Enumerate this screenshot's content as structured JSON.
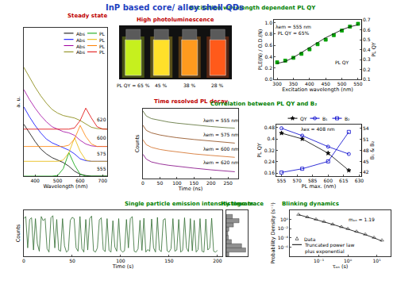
{
  "title": "InP based core/ alloy shell QDs",
  "photo": {
    "title": "High photoluminescence",
    "vials": [
      {
        "color": "#c6f01e",
        "label": "PL QY = 65 %"
      },
      {
        "color": "#ffe02a",
        "label": "45 %"
      },
      {
        "color": "#ff9a1e",
        "label": "38 %"
      },
      {
        "color": "#ff5a1a",
        "label": "28 %"
      }
    ]
  },
  "chart_data": [
    {
      "type": "line",
      "title": "Steady state",
      "xlabel": "Wavelength (nm)",
      "ylabel": "a. u.",
      "tick_labels": "x",
      "legend": "upper right",
      "x": [
        350,
        375,
        400,
        425,
        450,
        475,
        500,
        525,
        550,
        575,
        600,
        625,
        650,
        675,
        700,
        720
      ],
      "xlim": [
        350,
        720
      ],
      "xticks": [
        400,
        500,
        600,
        700
      ],
      "ylim": [
        0,
        12
      ],
      "series": [
        {
          "name": "Abs",
          "color": "#000000",
          "values": [
            4.2,
            3.5,
            2.8,
            2.2,
            1.8,
            1.5,
            1.3,
            1.1,
            0.8,
            0.4,
            0.15,
            0.05,
            0,
            0,
            0,
            0
          ]
        },
        {
          "name": "PL",
          "color": "#00a000",
          "values": [
            0,
            0,
            0,
            0,
            0,
            0,
            0.05,
            0.6,
            1.9,
            0.9,
            0.15,
            0,
            0,
            0,
            0,
            0
          ]
        },
        {
          "name": "Abs",
          "color": "#0000ff",
          "values": [
            5.6,
            4.8,
            4.1,
            3.5,
            3.0,
            2.7,
            2.5,
            2.3,
            2.1,
            1.8,
            1.4,
            1.25,
            1.2,
            1.2,
            1.2,
            1.2
          ]
        },
        {
          "name": "PL",
          "color": "#e6b800",
          "values": [
            1.2,
            1.2,
            1.2,
            1.2,
            1.2,
            1.2,
            1.2,
            1.3,
            1.9,
            3.1,
            2.0,
            1.3,
            1.2,
            1.2,
            1.2,
            1.2
          ]
        },
        {
          "name": "Abs",
          "color": "#a000a0",
          "values": [
            7.0,
            6.2,
            5.5,
            4.9,
            4.4,
            4.0,
            3.8,
            3.6,
            3.5,
            3.3,
            2.9,
            2.6,
            2.45,
            2.4,
            2.4,
            2.4
          ]
        },
        {
          "name": "PL",
          "color": "#ff8000",
          "values": [
            2.4,
            2.4,
            2.4,
            2.4,
            2.4,
            2.4,
            2.4,
            2.4,
            2.5,
            3.0,
            4.1,
            3.2,
            2.6,
            2.4,
            2.4,
            2.4
          ]
        },
        {
          "name": "Abs",
          "color": "#808000",
          "values": [
            8.8,
            8.0,
            7.2,
            6.5,
            5.9,
            5.4,
            5.1,
            4.9,
            4.8,
            4.7,
            4.5,
            4.2,
            3.95,
            3.85,
            3.8,
            3.8
          ]
        },
        {
          "name": "PL",
          "color": "#e00000",
          "values": [
            3.8,
            3.8,
            3.8,
            3.8,
            3.8,
            3.8,
            3.8,
            3.8,
            3.8,
            3.9,
            4.5,
            5.5,
            4.7,
            4.0,
            3.8,
            3.8
          ]
        }
      ],
      "annotations": [
        {
          "text": "620",
          "x": 695,
          "y": 4.6
        },
        {
          "text": "600",
          "x": 695,
          "y": 3.1
        },
        {
          "text": "575",
          "x": 695,
          "y": 1.8
        },
        {
          "text": "555",
          "x": 695,
          "y": 0.6
        }
      ]
    },
    {
      "type": "line",
      "title": "Excitation wavelength dependent PL QY",
      "xlabel": "Excitation wavelength (nm)",
      "ylabel": "PLE(N) / O.D.(N)",
      "y2label": "PL QY",
      "x": [
        300,
        325,
        350,
        375,
        400,
        425,
        450,
        475,
        500,
        525,
        550
      ],
      "xlim": [
        290,
        560
      ],
      "xticks": [
        300,
        350,
        400,
        450,
        500,
        550
      ],
      "ylim": [
        0,
        1.05
      ],
      "yticks": [
        {
          "value": 0,
          "label": "0.0"
        },
        0.2,
        0.4,
        0.6,
        0.8,
        {
          "value": 1,
          "label": "1.0"
        }
      ],
      "y2lim": [
        0.1,
        0.7
      ],
      "y2ticks": [
        0.1,
        0.2,
        0.3,
        0.4,
        0.5,
        0.6,
        0.7
      ],
      "series": [
        {
          "color": "#00a000",
          "marker": "square",
          "line_style": "none",
          "values": [
            0.3,
            0.33,
            0.38,
            0.45,
            0.53,
            0.62,
            0.7,
            0.78,
            0.86,
            0.93,
            0.98
          ]
        },
        {
          "color": "#000000",
          "line_style": "solid",
          "axis": "y2",
          "values": [
            0.26,
            0.28,
            0.32,
            0.37,
            0.42,
            0.47,
            0.52,
            0.56,
            0.6,
            0.63,
            0.65
          ]
        }
      ],
      "annotations": [
        {
          "text": "λem = 555 nm\nPL QY = 65%",
          "x": 350,
          "y": 0.88
        },
        {
          "text": "PL QY",
          "x": 500,
          "y": 0.3
        }
      ]
    },
    {
      "type": "line",
      "title": "Time resolved PL decay",
      "xlabel": "Time (ns)",
      "ylabel": "Counts",
      "log": "y",
      "tick_labels": "x",
      "x": [
        0,
        10,
        25,
        50,
        75,
        100,
        150,
        200,
        250,
        270
      ],
      "xlim": [
        0,
        280
      ],
      "xticks": [
        0,
        50,
        100,
        150,
        200,
        250
      ],
      "ylim": [
        0.1,
        30000
      ],
      "series": [
        {
          "color": "#556b2f",
          "values": [
            20000,
            8000,
            5000,
            3500,
            2700,
            2200,
            1600,
            1200,
            950,
            900
          ]
        },
        {
          "color": "#8b4513",
          "values": [
            1500,
            600,
            380,
            260,
            200,
            160,
            115,
            85,
            65,
            60
          ]
        },
        {
          "color": "#d2691e",
          "values": [
            110,
            45,
            28,
            19,
            15,
            12,
            8.5,
            6.5,
            5,
            4.6
          ]
        },
        {
          "color": "#800080",
          "values": [
            8,
            3.3,
            2,
            1.4,
            1.1,
            0.9,
            0.65,
            0.48,
            0.37,
            0.34
          ]
        }
      ],
      "annotations": [
        {
          "text": "λem = 555 nm",
          "x": 230,
          "y": 4000
        },
        {
          "text": "λem = 575 nm",
          "x": 230,
          "y": 282
        },
        {
          "text": "λem = 600 nm",
          "x": 230,
          "y": 22
        },
        {
          "text": "λem = 620 nm",
          "x": 230,
          "y": 2
        }
      ]
    },
    {
      "type": "scatter",
      "title": "Correlation between PL QY and B₂",
      "xlabel": "PL max. (nm)",
      "ylabel": "PL QY",
      "y2label": "B₁ & B₂",
      "legend": "top",
      "x": [
        555,
        575,
        600,
        620
      ],
      "xlim": [
        550,
        632
      ],
      "xticks": [
        555,
        570,
        585,
        600,
        615,
        630
      ],
      "ylim": [
        0.14,
        0.5
      ],
      "yticks": [
        0.16,
        0.24,
        0.32,
        0.4,
        0.48
      ],
      "y2lim": [
        41,
        55
      ],
      "y2ticks": [
        42,
        45,
        48,
        51,
        54
      ],
      "series": [
        {
          "name": "QY",
          "color": "#000000",
          "marker": "star",
          "line_style": "solid",
          "values": [
            0.44,
            0.4,
            0.3,
            0.18
          ]
        },
        {
          "name": "B₁",
          "color": "#0000cc",
          "marker": "circle-open",
          "line_style": "solid",
          "axis": "y2",
          "values": [
            54,
            52,
            49,
            47
          ]
        },
        {
          "name": "B₂",
          "color": "#0000cc",
          "marker": "square-open",
          "line_style": "solid",
          "axis": "y2",
          "values": [
            42,
            43,
            45,
            53
          ]
        }
      ],
      "annotations": [
        {
          "text": "λex = 408 nm",
          "x": 590,
          "y": 0.47
        }
      ]
    },
    {
      "type": "line",
      "title": "Single particle emission intensity time trace",
      "xlabel": "Time (s)",
      "ylabel": "Counts",
      "tick_labels": "x",
      "color": "#2e6b2e",
      "x": [
        0,
        2,
        4,
        6,
        8,
        10,
        12,
        14,
        16,
        18,
        20,
        22,
        24,
        26,
        28,
        30,
        32,
        34,
        36,
        38,
        40,
        42,
        44,
        46,
        48,
        50,
        52,
        54,
        56,
        58,
        60,
        62,
        64,
        66,
        68,
        70,
        72,
        74,
        76,
        78,
        80,
        82,
        84,
        86,
        88,
        90,
        92,
        94,
        96,
        98,
        100,
        102,
        104,
        106,
        108,
        110,
        112,
        114,
        116,
        118,
        120,
        122,
        124,
        126,
        128,
        130,
        132,
        134,
        136,
        138,
        140,
        142,
        144,
        146,
        148,
        150,
        152,
        154,
        156,
        158,
        160,
        162,
        164,
        166,
        168,
        170,
        172,
        174,
        176,
        178,
        180,
        182,
        184,
        186,
        188,
        190,
        192,
        194,
        196,
        198,
        200
      ],
      "values": [
        0.9,
        0.95,
        0.2,
        0.88,
        0.92,
        0.15,
        0.9,
        0.3,
        0.12,
        0.95,
        0.85,
        0.9,
        0.18,
        0.1,
        0.92,
        0.97,
        0.2,
        0.88,
        0.15,
        0.12,
        0.9,
        0.25,
        0.1,
        0.14,
        0.86,
        0.93,
        0.9,
        0.2,
        0.12,
        0.95,
        0.18,
        0.1,
        0.88,
        0.15,
        0.9,
        0.96,
        0.13,
        0.1,
        0.2,
        0.87,
        0.92,
        0.16,
        0.11,
        0.9,
        0.14,
        0.1,
        0.85,
        0.22,
        0.12,
        0.9,
        0.15,
        0.1,
        0.13,
        0.88,
        0.2,
        0.9,
        0.95,
        0.12,
        0.1,
        0.18,
        0.86,
        0.14,
        0.91,
        0.1,
        0.16,
        0.12,
        0.89,
        0.2,
        0.1,
        0.93,
        0.15,
        0.11,
        0.87,
        0.9,
        0.13,
        0.1,
        0.18,
        0.9,
        0.12,
        0.15,
        0.88,
        0.1,
        0.14,
        0.92,
        0.2,
        0.11,
        0.9,
        0.13,
        0.86,
        0.1,
        0.16,
        0.9,
        0.12,
        0.1,
        0.89,
        0.15,
        0.2,
        0.91,
        0.12,
        0.1,
        0.14
      ],
      "xlim": [
        0,
        205
      ],
      "xticks": [
        0,
        50,
        100,
        150,
        200
      ],
      "ylim": [
        0,
        1.1
      ]
    },
    {
      "type": "histogram",
      "title": "Histogram",
      "orientation": "horizontal",
      "tick_labels": false,
      "color": "#909090",
      "bins": [
        0,
        0.1,
        0.2,
        0.3,
        0.4,
        0.5,
        0.6,
        0.7,
        0.8,
        0.9,
        1.0
      ],
      "values": [
        5,
        38,
        30,
        10,
        4,
        3,
        5,
        14,
        25,
        12
      ],
      "xlim": [
        0,
        42
      ],
      "ylim": [
        0,
        1.1
      ]
    },
    {
      "type": "scatter",
      "title": "Blinking dynamics",
      "xlabel": "τₒₙ (s)",
      "ylabel": "Probability Density (s⁻¹)",
      "log": true,
      "legend": "lower left",
      "x": [
        0.02,
        0.04,
        0.08,
        0.15,
        0.3,
        0.6,
        1,
        2,
        4,
        8,
        15
      ],
      "xlim": [
        0.01,
        30
      ],
      "xticks": [
        {
          "value": 0.1,
          "label": "10⁻¹"
        },
        {
          "value": 1,
          "label": "10⁰"
        },
        {
          "value": 10,
          "label": "10¹"
        }
      ],
      "ylim": [
        1e-08,
        100
      ],
      "yticks": [
        {
          "value": 1e-06,
          "label": "10⁻⁶"
        },
        {
          "value": 0.0001,
          "label": "10⁻⁴"
        },
        {
          "value": 0.01,
          "label": "10⁻²"
        },
        {
          "value": 1,
          "label": "10⁰"
        }
      ],
      "series": [
        {
          "name": "Data",
          "color": "#555555",
          "marker": "triangle-up-open",
          "line_style": "none",
          "values": [
            12,
            3.5,
            1.1,
            0.35,
            0.09,
            0.025,
            0.01,
            0.0025,
            0.0006,
            0.00012,
            3e-05
          ]
        },
        {
          "name": "Truncated power law\nplus exponential",
          "color": "#000000",
          "line_style": "solid",
          "values": [
            11,
            3.3,
            1.0,
            0.32,
            0.085,
            0.022,
            0.0085,
            0.0021,
            0.0005,
            0.0001,
            2e-05
          ]
        }
      ],
      "annotations": [
        {
          "text": "mₒₙ = 1.19",
          "x": 3,
          "y": 1
        }
      ]
    }
  ]
}
